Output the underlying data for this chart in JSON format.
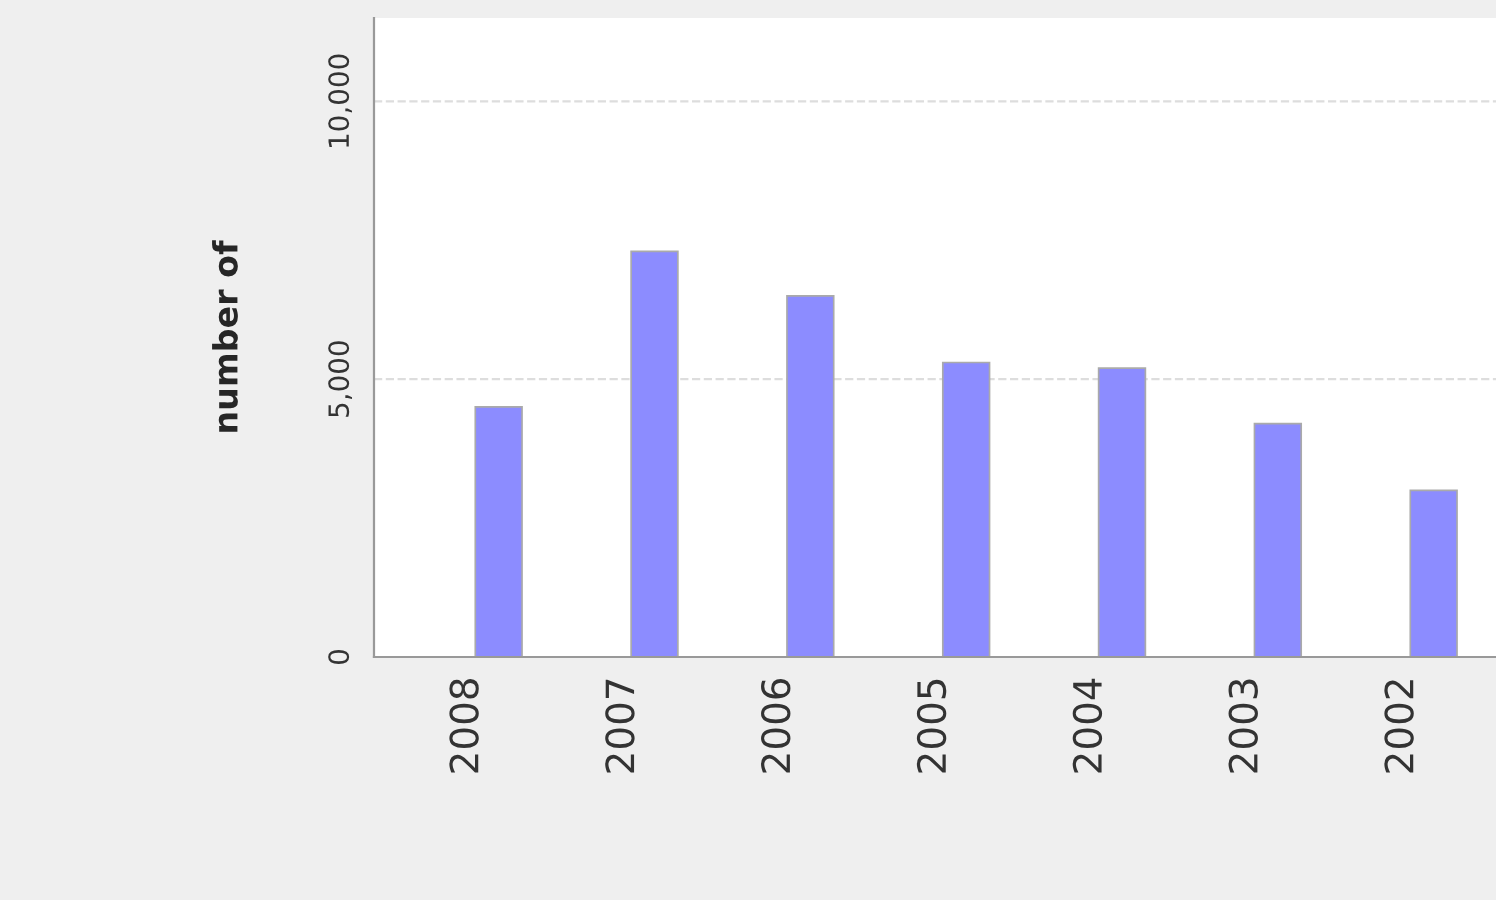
{
  "chart_data": {
    "type": "bar",
    "ylabel": "number of",
    "categories": [
      "2008",
      "2007",
      "2006",
      "2005",
      "2004",
      "2003",
      "2002"
    ],
    "series": [
      {
        "color": "#ff8c8c",
        "values": [
          null,
          null,
          null,
          null,
          null,
          null,
          null
        ]
      },
      {
        "color": "#8c8cff",
        "values": [
          4500,
          7300,
          6500,
          5300,
          5200,
          4200,
          3000
        ]
      }
    ],
    "ylim": [
      0,
      11500
    ],
    "yticks": [
      0,
      {
        "value": 5000,
        "label": "5,000"
      },
      {
        "value": 10000,
        "label": "10,000"
      }
    ],
    "grid": "y",
    "legend": false
  }
}
